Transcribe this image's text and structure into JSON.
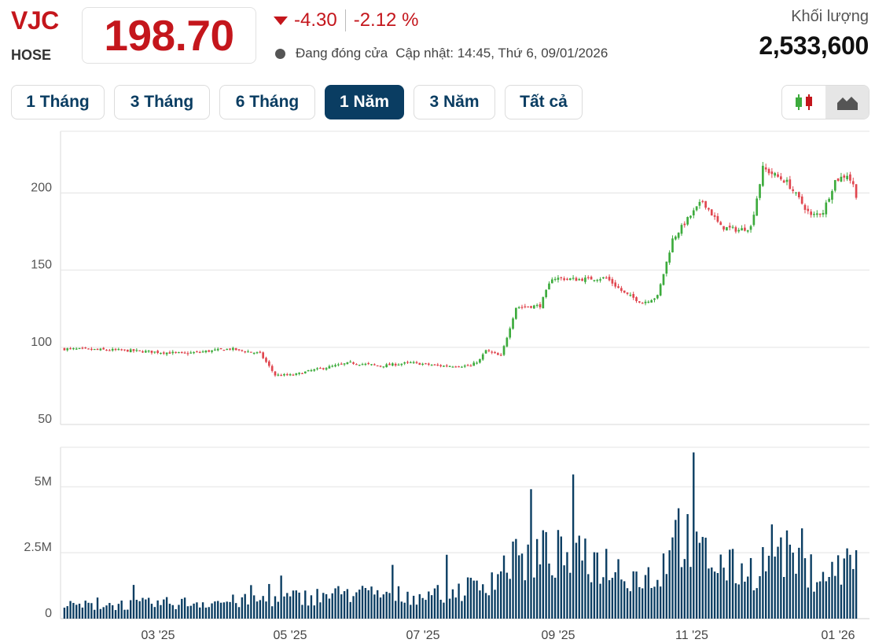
{
  "header": {
    "ticker": "VJC",
    "exchange": "HOSE",
    "price": "198.70",
    "change": "-4.30",
    "change_percent": "-2.12 %",
    "status": "Đang đóng cửa",
    "updated": "Cập nhật: 14:45, Thứ 6, 09/01/2026",
    "volume_label": "Khối lượng",
    "volume_value": "2,533,600"
  },
  "tabs": [
    {
      "label": "1 Tháng",
      "active": false
    },
    {
      "label": "3 Tháng",
      "active": false
    },
    {
      "label": "6 Tháng",
      "active": false
    },
    {
      "label": "1 Năm",
      "active": true
    },
    {
      "label": "3 Năm",
      "active": false
    },
    {
      "label": "Tất cả",
      "active": false
    }
  ],
  "chart_type": {
    "options": [
      "candlestick-icon",
      "area-chart-icon"
    ],
    "selected": "area-chart-icon"
  },
  "colors": {
    "up": "#3dab3d",
    "down": "#e0464f",
    "volume": "#0a3d62",
    "accent": "#c4161c",
    "tab_active": "#0a3d62"
  },
  "chart_data": [
    {
      "type": "candlestick",
      "y_ticks": [
        "50",
        "100",
        "150",
        "200"
      ],
      "ylim": [
        50,
        240
      ],
      "x_ticks": [
        "03 '25",
        "05 '25",
        "07 '25",
        "09 '25",
        "11 '25",
        "01 '26"
      ],
      "close_anchors": [
        {
          "i": 0,
          "v": 99
        },
        {
          "i": 20,
          "v": 98
        },
        {
          "i": 40,
          "v": 96
        },
        {
          "i": 55,
          "v": 99
        },
        {
          "i": 65,
          "v": 96
        },
        {
          "i": 70,
          "v": 82
        },
        {
          "i": 76,
          "v": 82
        },
        {
          "i": 82,
          "v": 85
        },
        {
          "i": 95,
          "v": 90
        },
        {
          "i": 105,
          "v": 88
        },
        {
          "i": 115,
          "v": 90
        },
        {
          "i": 125,
          "v": 88
        },
        {
          "i": 135,
          "v": 88
        },
        {
          "i": 138,
          "v": 92
        },
        {
          "i": 140,
          "v": 98
        },
        {
          "i": 145,
          "v": 94
        },
        {
          "i": 150,
          "v": 126
        },
        {
          "i": 158,
          "v": 127
        },
        {
          "i": 162,
          "v": 145
        },
        {
          "i": 170,
          "v": 144
        },
        {
          "i": 180,
          "v": 145
        },
        {
          "i": 186,
          "v": 135
        },
        {
          "i": 192,
          "v": 129
        },
        {
          "i": 197,
          "v": 133
        },
        {
          "i": 202,
          "v": 170
        },
        {
          "i": 207,
          "v": 183
        },
        {
          "i": 212,
          "v": 195
        },
        {
          "i": 218,
          "v": 178
        },
        {
          "i": 224,
          "v": 176
        },
        {
          "i": 228,
          "v": 178
        },
        {
          "i": 232,
          "v": 216
        },
        {
          "i": 240,
          "v": 207
        },
        {
          "i": 244,
          "v": 196
        },
        {
          "i": 248,
          "v": 185
        },
        {
          "i": 252,
          "v": 188
        },
        {
          "i": 256,
          "v": 208
        },
        {
          "i": 260,
          "v": 212
        },
        {
          "i": 262,
          "v": 205
        },
        {
          "i": 263,
          "v": 198.7
        }
      ]
    },
    {
      "type": "bar",
      "y_ticks": [
        "0",
        "2.5M",
        "5M"
      ],
      "ylim": [
        0,
        6500000
      ],
      "volume_anchors": [
        {
          "i": 0,
          "v": 500000
        },
        {
          "i": 60,
          "v": 700000
        },
        {
          "i": 95,
          "v": 1000000
        },
        {
          "i": 120,
          "v": 900000
        },
        {
          "i": 138,
          "v": 1300000
        },
        {
          "i": 148,
          "v": 2200000
        },
        {
          "i": 160,
          "v": 2600000
        },
        {
          "i": 170,
          "v": 2400000
        },
        {
          "i": 180,
          "v": 2200000
        },
        {
          "i": 190,
          "v": 1700000
        },
        {
          "i": 198,
          "v": 1700000
        },
        {
          "i": 202,
          "v": 3800000
        },
        {
          "i": 210,
          "v": 2700000
        },
        {
          "i": 220,
          "v": 2000000
        },
        {
          "i": 230,
          "v": 1900000
        },
        {
          "i": 236,
          "v": 3000000
        },
        {
          "i": 245,
          "v": 1900000
        },
        {
          "i": 255,
          "v": 1800000
        },
        {
          "i": 263,
          "v": 2533600
        }
      ]
    }
  ]
}
